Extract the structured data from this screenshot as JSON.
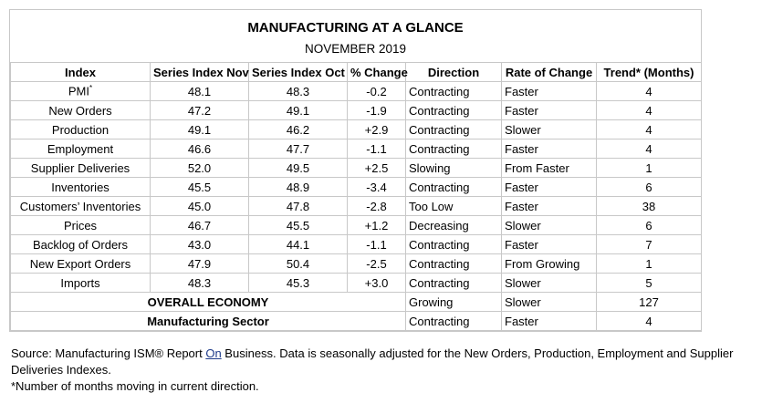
{
  "header": {
    "title": "MANUFACTURING AT A GLANCE",
    "subtitle": "NOVEMBER 2019"
  },
  "table": {
    "columns": [
      "Index",
      "Series Index Nov",
      "Series Index Oct",
      "% Change",
      "Direction",
      "Rate of Change",
      "Trend* (Months)"
    ],
    "pmi_mark": "*",
    "rows": [
      [
        "PMI",
        "48.1",
        "48.3",
        "-0.2",
        "Contracting",
        "Faster",
        "4"
      ],
      [
        "New Orders",
        "47.2",
        "49.1",
        "-1.9",
        "Contracting",
        "Faster",
        "4"
      ],
      [
        "Production",
        "49.1",
        "46.2",
        "+2.9",
        "Contracting",
        "Slower",
        "4"
      ],
      [
        "Employment",
        "46.6",
        "47.7",
        "-1.1",
        "Contracting",
        "Faster",
        "4"
      ],
      [
        "Supplier Deliveries",
        "52.0",
        "49.5",
        "+2.5",
        "Slowing",
        "From Faster",
        "1"
      ],
      [
        "Inventories",
        "45.5",
        "48.9",
        "-3.4",
        "Contracting",
        "Faster",
        "6"
      ],
      [
        "Customers’ Inventories",
        "45.0",
        "47.8",
        "-2.8",
        "Too Low",
        "Faster",
        "38"
      ],
      [
        "Prices",
        "46.7",
        "45.5",
        "+1.2",
        "Decreasing",
        "Slower",
        "6"
      ],
      [
        "Backlog of Orders",
        "43.0",
        "44.1",
        "-1.1",
        "Contracting",
        "Faster",
        "7"
      ],
      [
        "New Export Orders",
        "47.9",
        "50.4",
        "-2.5",
        "Contracting",
        "From Growing",
        "1"
      ],
      [
        "Imports",
        "48.3",
        "45.3",
        "+3.0",
        "Contracting",
        "Slower",
        "5"
      ]
    ],
    "summary": [
      [
        "OVERALL ECONOMY",
        "Growing",
        "Slower",
        "127"
      ],
      [
        "Manufacturing Sector",
        "Contracting",
        "Faster",
        "4"
      ]
    ]
  },
  "footer": {
    "source_before": "Source: Manufacturing ISM® Report ",
    "source_link": "On",
    "source_after": " Business. Data is seasonally adjusted for the New Orders, Production, Employment and Supplier Deliveries Indexes.",
    "note": "*Number of months moving in current direction."
  }
}
